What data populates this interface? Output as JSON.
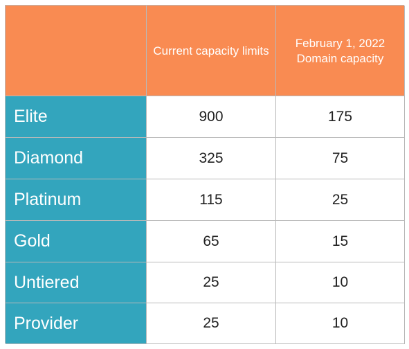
{
  "header": {
    "corner": "",
    "col1": "Current capacity limits",
    "col2": "February 1, 2022 Domain capacity"
  },
  "rows": [
    {
      "tier": "Elite",
      "current": "900",
      "domain": "175"
    },
    {
      "tier": "Diamond",
      "current": "325",
      "domain": "75"
    },
    {
      "tier": "Platinum",
      "current": "115",
      "domain": "25"
    },
    {
      "tier": "Gold",
      "current": "65",
      "domain": "15"
    },
    {
      "tier": "Untiered",
      "current": "25",
      "domain": "10"
    },
    {
      "tier": "Provider",
      "current": "25",
      "domain": "10"
    }
  ],
  "colors": {
    "header_bg": "#f98b52",
    "tier_bg": "#33a5bd",
    "border": "#b9b9b9"
  }
}
